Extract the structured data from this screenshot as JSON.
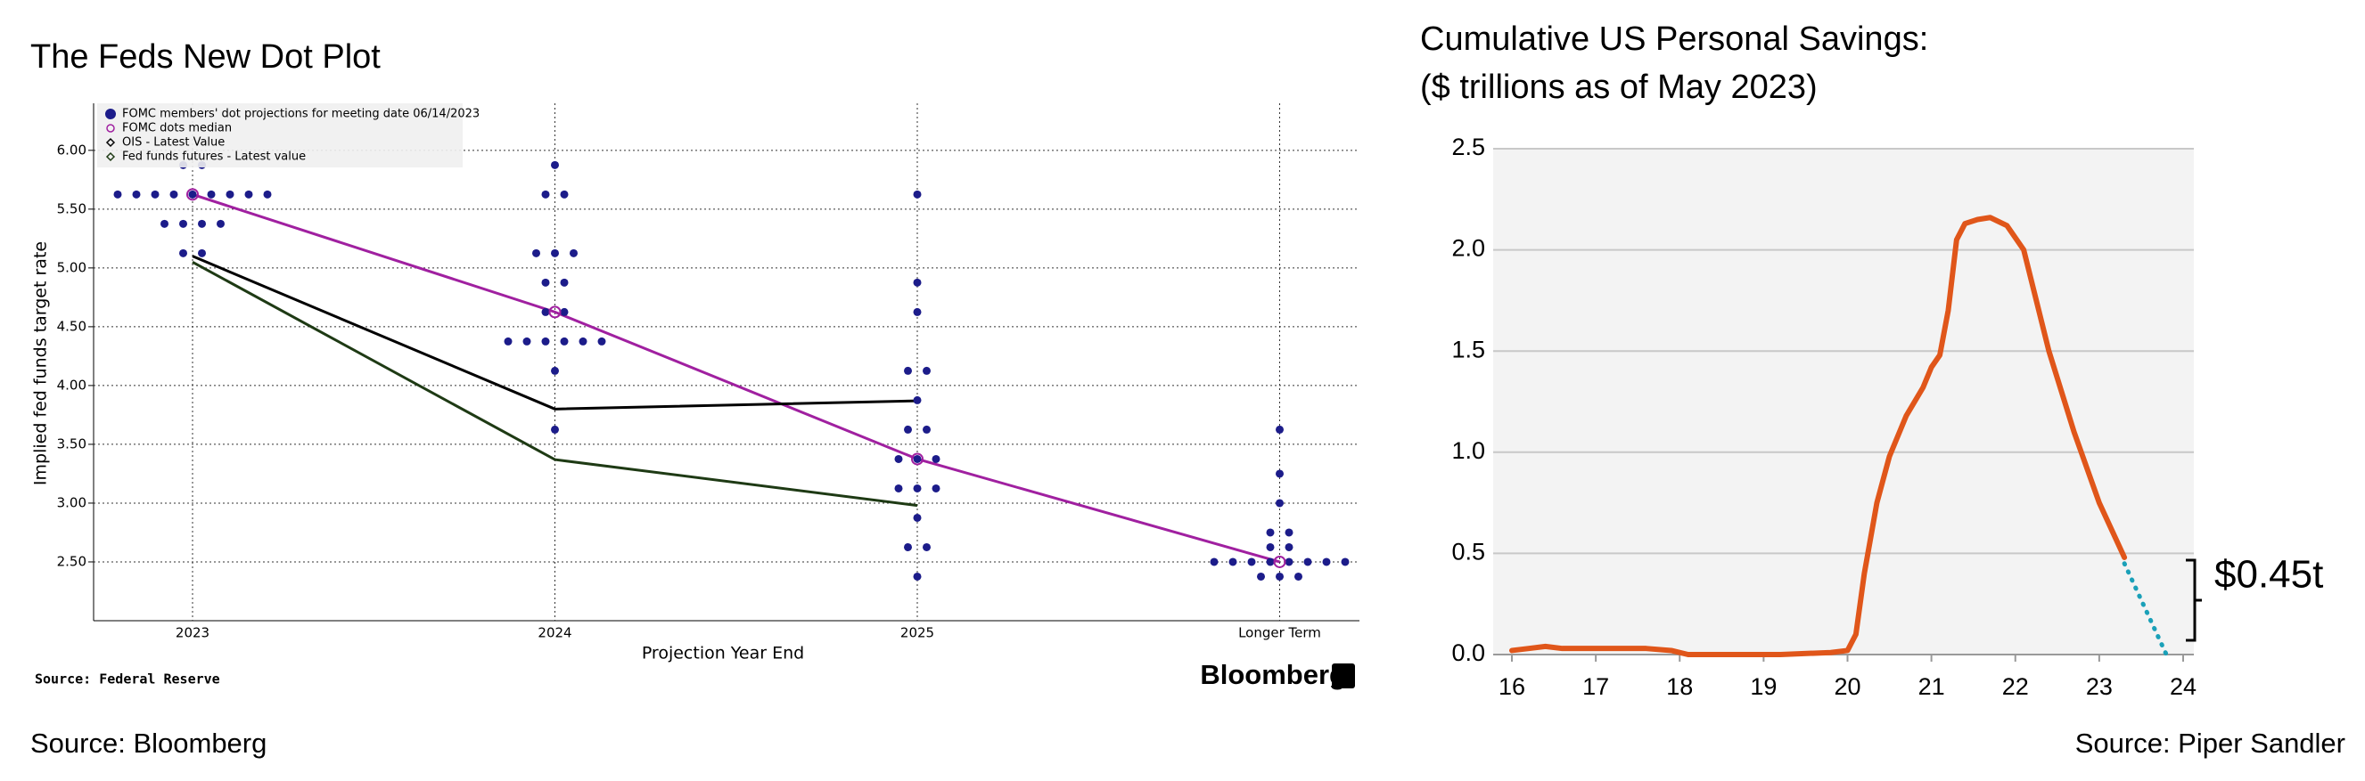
{
  "chart_data": [
    {
      "type": "dot",
      "title": "The Feds New Dot Plot",
      "categories": [
        "2023",
        "2024",
        "2025",
        "Longer Term"
      ],
      "xlabel": "Projection Year End",
      "ylabel": "Implied fed funds target rate",
      "ylim": [
        2.0,
        6.4
      ],
      "yticks": [
        {
          "value": 2.5,
          "label": "2.50"
        },
        {
          "value": 3.0,
          "label": "3.00"
        },
        {
          "value": 3.5,
          "label": "3.50"
        },
        {
          "value": 4.0,
          "label": "4.00"
        },
        {
          "value": 4.5,
          "label": "4.50"
        },
        {
          "value": 5.0,
          "label": "5.00"
        },
        {
          "value": 5.5,
          "label": "5.50"
        },
        {
          "value": 6.0,
          "label": "6.00"
        }
      ],
      "grid": true,
      "dots": {
        "name": "FOMC members' dot projections for meeting date 06/14/2023",
        "color": "#1c1c8a",
        "values": [
          [
            5.875,
            5.875,
            5.625,
            5.625,
            5.625,
            5.625,
            5.625,
            5.625,
            5.625,
            5.625,
            5.625,
            5.375,
            5.375,
            5.375,
            5.375,
            5.125,
            5.125
          ],
          [
            5.875,
            5.625,
            5.625,
            5.125,
            5.125,
            5.125,
            4.875,
            4.875,
            4.625,
            4.625,
            4.375,
            4.375,
            4.375,
            4.375,
            4.375,
            4.375,
            4.125,
            3.625
          ],
          [
            5.625,
            4.875,
            4.625,
            4.125,
            4.125,
            3.875,
            3.625,
            3.625,
            3.375,
            3.375,
            3.375,
            3.125,
            3.125,
            3.125,
            2.875,
            2.625,
            2.625,
            2.375
          ],
          [
            3.625,
            3.25,
            3.0,
            2.75,
            2.75,
            2.625,
            2.625,
            2.5,
            2.5,
            2.5,
            2.5,
            2.5,
            2.5,
            2.5,
            2.5,
            2.375,
            2.375,
            2.375
          ]
        ]
      },
      "series": [
        {
          "name": "FOMC dots median",
          "color": "#a020a0",
          "values": [
            5.625,
            4.625,
            3.375,
            2.5
          ]
        },
        {
          "name": "OIS - Latest Value",
          "color": "#000000",
          "values": [
            5.1,
            3.8,
            3.87,
            null
          ]
        },
        {
          "name": "Fed funds futures - Latest value",
          "color": "#1e3a14",
          "values": [
            5.05,
            3.37,
            2.98,
            null
          ]
        }
      ],
      "source": "Source: Federal Reserve",
      "logo": "Bloomberg"
    },
    {
      "type": "line",
      "title": "Cumulative US Personal Savings:",
      "subtitle": "($ trillions as of May 2023)",
      "xlim": [
        16,
        24
      ],
      "xticks": [
        16,
        17,
        18,
        19,
        20,
        21,
        22,
        23,
        24
      ],
      "ylim": [
        0,
        2.5
      ],
      "yticks": [
        {
          "value": 0,
          "label": "0.0"
        },
        {
          "value": 0.5,
          "label": "0.5"
        },
        {
          "value": 1,
          "label": "1.0"
        },
        {
          "value": 1.5,
          "label": "1.5"
        },
        {
          "value": 2,
          "label": "2.0"
        },
        {
          "value": 2.5,
          "label": "2.5"
        }
      ],
      "grid": true,
      "series": [
        {
          "color": "#e0561a",
          "dashed": false,
          "x": [
            16,
            16.2,
            16.4,
            16.6,
            17,
            17.4,
            17.6,
            17.9,
            18.1,
            19.2,
            19.8,
            20.0,
            20.1,
            20.2,
            20.35,
            20.5,
            20.7,
            20.9,
            21.0,
            21.1,
            21.2,
            21.3,
            21.4,
            21.55,
            21.7,
            21.9,
            22.1,
            22.4,
            22.7,
            23.0,
            23.3
          ],
          "values": [
            0.02,
            0.03,
            0.04,
            0.03,
            0.03,
            0.03,
            0.03,
            0.02,
            0,
            0,
            0.01,
            0.02,
            0.1,
            0.4,
            0.75,
            0.98,
            1.18,
            1.32,
            1.42,
            1.48,
            1.7,
            2.05,
            2.13,
            2.15,
            2.16,
            2.12,
            2.0,
            1.5,
            1.1,
            0.75,
            0.48
          ]
        },
        {
          "color": "#1aa0b8",
          "dashed": true,
          "x": [
            23.3,
            23.8
          ],
          "values": [
            0.45,
            0
          ]
        }
      ],
      "annotation": "$0.45t"
    }
  ],
  "footnotes": [
    "Source:  Bloomberg",
    "Source: Piper Sandler"
  ]
}
